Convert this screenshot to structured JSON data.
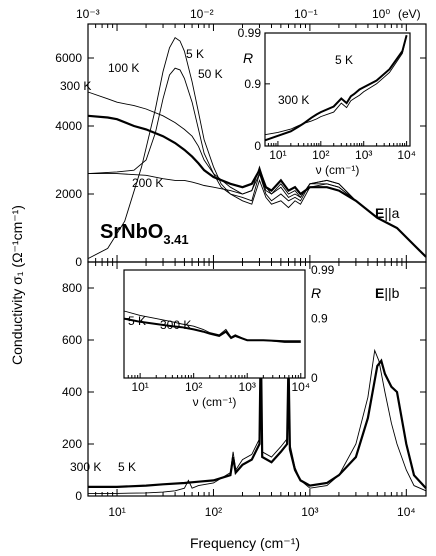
{
  "figure": {
    "title_ylabel": "Conductivity σ₁ (Ω⁻¹cm⁻¹)",
    "xlabel": "Frequency (cm⁻¹)",
    "top_axis_unit": "(eV)",
    "top_ticks": [
      "10⁻³",
      "10⁻²",
      "10⁻¹",
      "10⁰"
    ],
    "bottom_ticks": [
      "10¹",
      "10²",
      "10³",
      "10⁴"
    ]
  },
  "chart_data": [
    {
      "type": "line",
      "panel": "top",
      "xscale": "log",
      "xlim": [
        5,
        16000
      ],
      "ylim": [
        0,
        7000
      ],
      "yticks": [
        "0",
        "2000",
        "4000",
        "6000"
      ],
      "compound_label": "SrNbO",
      "compound_subscript": "3.41",
      "direction_label_E": "E",
      "direction_label_rest": "||a",
      "series": [
        {
          "name": "5 K",
          "weight": "thin",
          "x": [
            5,
            8,
            12,
            18,
            25,
            30,
            35,
            40,
            45,
            50,
            60,
            70,
            80,
            100,
            120,
            150,
            200,
            250,
            300,
            350,
            400,
            500,
            600,
            700,
            800,
            1000,
            1500,
            2000,
            3000,
            5000,
            8000,
            12000,
            16000
          ],
          "y": [
            100,
            400,
            1200,
            2800,
            4500,
            5600,
            6300,
            6600,
            6500,
            6200,
            5300,
            4400,
            3600,
            2800,
            2300,
            2000,
            1800,
            1700,
            2400,
            1900,
            1700,
            1800,
            1600,
            1800,
            1700,
            2200,
            2300,
            2200,
            1800,
            1300,
            1000,
            500,
            150
          ]
        },
        {
          "name": "50 K",
          "weight": "thin",
          "x": [
            5,
            10,
            15,
            20,
            25,
            30,
            35,
            40,
            45,
            50,
            60,
            70,
            80,
            100,
            120,
            150,
            200,
            250,
            300,
            350,
            400,
            500,
            600,
            700,
            800,
            1000,
            1500,
            2000,
            3000,
            5000,
            8000,
            12000,
            16000
          ],
          "y": [
            2600,
            2650,
            2700,
            3000,
            3800,
            4800,
            5500,
            5700,
            5650,
            5400,
            4700,
            3900,
            3200,
            2600,
            2200,
            2000,
            1900,
            1800,
            2600,
            2000,
            1800,
            2000,
            1800,
            1900,
            1800,
            2300,
            2400,
            2300,
            1800,
            1300,
            1000,
            500,
            150
          ]
        },
        {
          "name": "100 K",
          "weight": "thin",
          "x": [
            5,
            8,
            10,
            15,
            20,
            30,
            40,
            50,
            60,
            70,
            80,
            100,
            150,
            200,
            250,
            300,
            350,
            400,
            500,
            600,
            700,
            800,
            1000,
            1500,
            2000,
            3000,
            5000,
            8000,
            12000,
            16000
          ],
          "y": [
            5000,
            4800,
            4700,
            4600,
            4500,
            4300,
            4100,
            3900,
            3700,
            3400,
            3000,
            2600,
            2200,
            2000,
            2100,
            2800,
            2200,
            2000,
            2300,
            2000,
            2100,
            1900,
            2300,
            2400,
            2300,
            1800,
            1300,
            1000,
            500,
            150
          ]
        },
        {
          "name": "300 K",
          "weight": "thick",
          "x": [
            5,
            8,
            10,
            15,
            20,
            30,
            40,
            50,
            60,
            70,
            80,
            100,
            150,
            200,
            250,
            300,
            350,
            400,
            500,
            600,
            700,
            800,
            1000,
            1500,
            2000,
            3000,
            5000,
            8000,
            12000,
            16000
          ],
          "y": [
            4300,
            4250,
            4200,
            4000,
            3900,
            3700,
            3500,
            3300,
            3100,
            2900,
            2700,
            2500,
            2300,
            2200,
            2300,
            2700,
            2200,
            2100,
            2400,
            2100,
            2200,
            2000,
            2200,
            2200,
            2100,
            1800,
            1300,
            1000,
            500,
            150
          ]
        },
        {
          "name": "200 K",
          "weight": "thin",
          "x": [
            5,
            10,
            20,
            30,
            40,
            50,
            60,
            70,
            80,
            100,
            150,
            200,
            250,
            300,
            350,
            400,
            500,
            600,
            700,
            800,
            1000,
            1500,
            2000,
            3000,
            5000,
            8000,
            12000,
            16000
          ],
          "y": [
            2600,
            2600,
            2550,
            2450,
            2400,
            2400,
            2350,
            2300,
            2250,
            2200,
            2100,
            2000,
            2100,
            2600,
            2100,
            2000,
            2200,
            1900,
            2000,
            1900,
            2300,
            2300,
            2200,
            1800,
            1300,
            1000,
            500,
            150
          ]
        }
      ],
      "inset": {
        "ylabel": "R",
        "xlabel": "ν (cm⁻¹)",
        "yticks": [
          "0",
          "0.9",
          "0.99"
        ],
        "xticks": [
          "10¹",
          "10²",
          "10³",
          "10⁴"
        ],
        "series": [
          {
            "name": "5 K",
            "weight": "thin",
            "x": [
              5,
              10,
              20,
              30,
              40,
              60,
              80,
              100,
              200,
              300,
              400,
              500,
              600,
              800,
              1000,
              2000,
              4000,
              8000,
              10000
            ],
            "r": [
              0.1,
              0.12,
              0.15,
              0.18,
              0.2,
              0.22,
              0.24,
              0.26,
              0.3,
              0.38,
              0.34,
              0.4,
              0.42,
              0.45,
              0.48,
              0.55,
              0.65,
              0.82,
              0.98
            ]
          },
          {
            "name": "300 K",
            "weight": "thick",
            "x": [
              5,
              10,
              20,
              30,
              40,
              60,
              80,
              100,
              200,
              300,
              400,
              500,
              600,
              800,
              1000,
              2000,
              4000,
              8000,
              10000
            ],
            "r": [
              0.05,
              0.09,
              0.13,
              0.17,
              0.2,
              0.25,
              0.28,
              0.3,
              0.35,
              0.42,
              0.38,
              0.44,
              0.46,
              0.5,
              0.52,
              0.58,
              0.68,
              0.84,
              0.98
            ]
          }
        ]
      }
    },
    {
      "type": "line",
      "panel": "bottom",
      "xscale": "log",
      "xlim": [
        5,
        16000
      ],
      "ylim": [
        0,
        900
      ],
      "yticks": [
        "0",
        "200",
        "400",
        "600",
        "800"
      ],
      "direction_label_E": "E",
      "direction_label_rest": "||b",
      "series": [
        {
          "name": "300 K",
          "weight": "thick",
          "x": [
            5,
            10,
            20,
            30,
            50,
            70,
            100,
            150,
            160,
            170,
            200,
            250,
            300,
            310,
            320,
            400,
            500,
            580,
            600,
            620,
            700,
            800,
            1000,
            1500,
            2000,
            3000,
            4000,
            5000,
            5500,
            6000,
            7000,
            8000,
            10000,
            12000,
            16000
          ],
          "y": [
            35,
            35,
            40,
            45,
            50,
            55,
            60,
            80,
            150,
            90,
            120,
            140,
            200,
            620,
            150,
            130,
            170,
            200,
            520,
            180,
            100,
            60,
            40,
            50,
            80,
            150,
            300,
            500,
            520,
            470,
            420,
            400,
            200,
            80,
            30
          ]
        },
        {
          "name": "5 K",
          "weight": "thin",
          "x": [
            5,
            10,
            20,
            30,
            40,
            50,
            55,
            60,
            70,
            100,
            150,
            160,
            170,
            200,
            250,
            300,
            310,
            320,
            400,
            500,
            580,
            600,
            620,
            700,
            800,
            1000,
            1500,
            2000,
            3000,
            4000,
            4700,
            5200,
            6000,
            7000,
            8000,
            10000,
            12000,
            16000
          ],
          "y": [
            10,
            10,
            12,
            15,
            20,
            30,
            60,
            30,
            40,
            50,
            90,
            170,
            100,
            140,
            160,
            220,
            650,
            170,
            150,
            190,
            220,
            540,
            200,
            110,
            60,
            30,
            40,
            80,
            200,
            380,
            560,
            520,
            400,
            280,
            200,
            100,
            40,
            20
          ]
        }
      ],
      "inset": {
        "ylabel": "R",
        "xlabel": "ν (cm⁻¹)",
        "yticks": [
          "0",
          "0.9",
          "0.99"
        ],
        "xticks": [
          "10¹",
          "10²",
          "10³",
          "10⁴"
        ],
        "series": [
          {
            "name": "5 K",
            "weight": "thin",
            "x": [
              5,
              10,
              20,
              40,
              60,
              100,
              150,
              200,
              300,
              400,
              500,
              600,
              1000,
              2000,
              5000,
              10000
            ],
            "r": [
              0.62,
              0.58,
              0.55,
              0.52,
              0.5,
              0.48,
              0.45,
              0.42,
              0.4,
              0.45,
              0.38,
              0.4,
              0.35,
              0.35,
              0.33,
              0.33
            ]
          },
          {
            "name": "300 K",
            "weight": "thick",
            "x": [
              5,
              10,
              20,
              40,
              60,
              100,
              150,
              200,
              300,
              400,
              500,
              600,
              1000,
              2000,
              5000,
              10000
            ],
            "r": [
              0.55,
              0.52,
              0.5,
              0.48,
              0.47,
              0.45,
              0.43,
              0.41,
              0.39,
              0.43,
              0.37,
              0.39,
              0.35,
              0.35,
              0.34,
              0.34
            ]
          }
        ]
      }
    }
  ]
}
